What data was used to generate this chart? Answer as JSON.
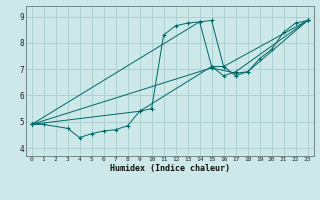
{
  "xlabel": "Humidex (Indice chaleur)",
  "xlim": [
    -0.5,
    23.5
  ],
  "ylim": [
    3.7,
    9.4
  ],
  "yticks": [
    4,
    5,
    6,
    7,
    8,
    9
  ],
  "xticks": [
    0,
    1,
    2,
    3,
    4,
    5,
    6,
    7,
    8,
    9,
    10,
    11,
    12,
    13,
    14,
    15,
    16,
    17,
    18,
    19,
    20,
    21,
    22,
    23
  ],
  "bg_color": "#cce8e8",
  "grid_color": "#aacccc",
  "line_color": "#006666",
  "series": [
    {
      "x": [
        0,
        1,
        3,
        4,
        5,
        6,
        7,
        8,
        9,
        10,
        11,
        12,
        13,
        14,
        15,
        16,
        17,
        18,
        19,
        20,
        21,
        22,
        23
      ],
      "y": [
        4.9,
        4.9,
        4.75,
        4.4,
        4.55,
        4.65,
        4.7,
        4.85,
        5.4,
        5.5,
        8.3,
        8.65,
        8.75,
        8.8,
        8.85,
        7.1,
        6.75,
        6.9,
        7.4,
        7.75,
        8.4,
        8.75,
        8.85
      ]
    },
    {
      "x": [
        0,
        9,
        15,
        16,
        17,
        23
      ],
      "y": [
        4.9,
        5.4,
        7.1,
        6.75,
        6.9,
        8.85
      ]
    },
    {
      "x": [
        0,
        14,
        15,
        16,
        23
      ],
      "y": [
        4.9,
        8.8,
        7.1,
        7.1,
        8.85
      ]
    },
    {
      "x": [
        0,
        15,
        17,
        18,
        23
      ],
      "y": [
        4.9,
        7.05,
        6.85,
        6.9,
        8.85
      ]
    }
  ]
}
